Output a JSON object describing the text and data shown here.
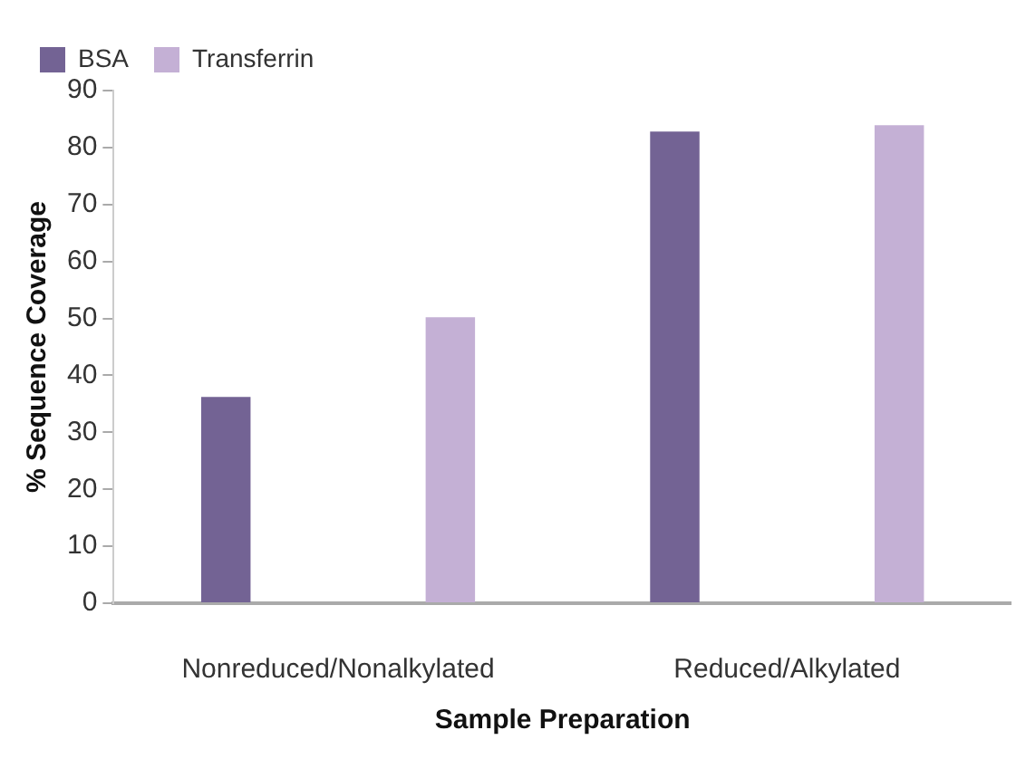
{
  "chart_data": {
    "type": "bar",
    "xlabel": "Sample Preparation",
    "ylabel": "% Sequence Coverage",
    "categories": [
      "Nonreduced/Nonalkylated",
      "Reduced/Alkylated"
    ],
    "series": [
      {
        "name": "BSA",
        "color": "#736394",
        "values": [
          36.2,
          82.8
        ]
      },
      {
        "name": "Transferrin",
        "color": "#c4b0d5",
        "values": [
          50.2,
          83.9
        ]
      }
    ],
    "ylim": [
      0,
      90
    ],
    "yticks": [
      0,
      10,
      20,
      30,
      40,
      50,
      60,
      70,
      80,
      90
    ],
    "grid": false,
    "legend": "top"
  }
}
